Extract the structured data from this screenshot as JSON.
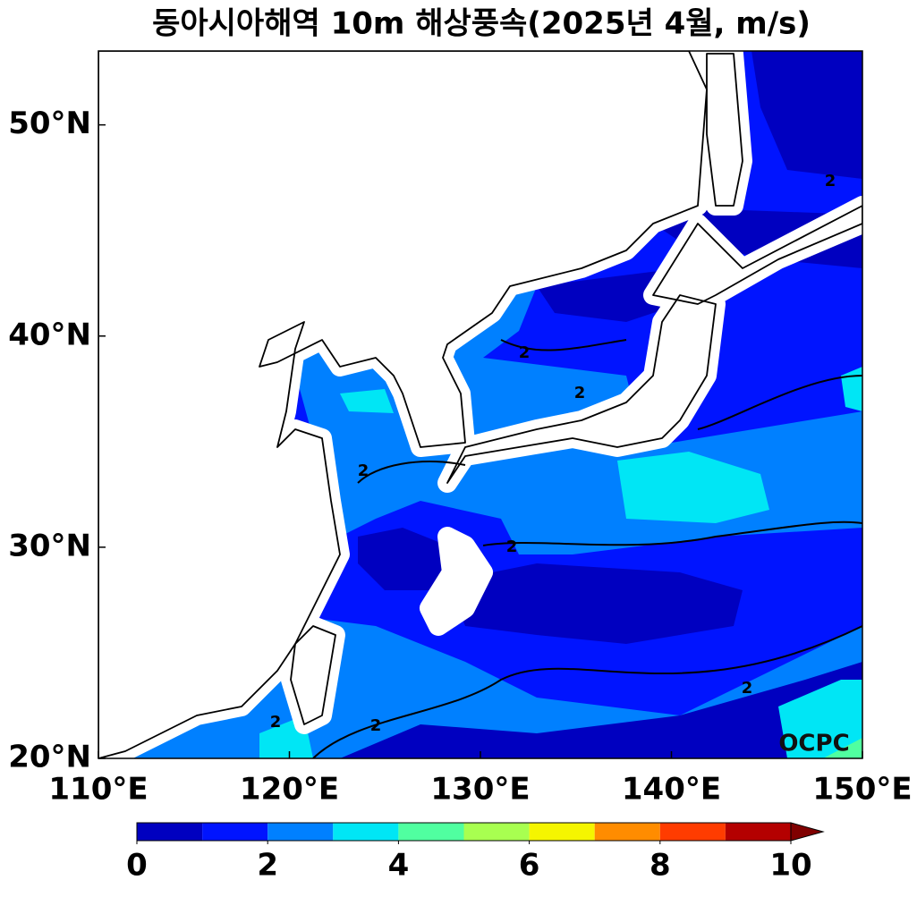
{
  "chart_data": {
    "type": "contour",
    "title": "동아시아해역 10m 해상풍속(2025년 4월, m/s)",
    "source": "OCPC",
    "xlim": [
      110,
      150
    ],
    "ylim": [
      20,
      53.5
    ],
    "xticks": [
      {
        "value": 110,
        "label": "110°E"
      },
      {
        "value": 120,
        "label": "120°E"
      },
      {
        "value": 130,
        "label": "130°E"
      },
      {
        "value": 140,
        "label": "140°E"
      },
      {
        "value": 150,
        "label": "150°E"
      }
    ],
    "yticks": [
      {
        "value": 20,
        "label": "20°N"
      },
      {
        "value": 30,
        "label": "30°N"
      },
      {
        "value": 40,
        "label": "40°N"
      },
      {
        "value": 50,
        "label": "50°N"
      }
    ],
    "levels": [
      0,
      1,
      2,
      3,
      4,
      5,
      6,
      7,
      8,
      9,
      10
    ],
    "colors": [
      "#0000c0",
      "#0014ff",
      "#0080ff",
      "#00e6f5",
      "#50ffa0",
      "#a8ff50",
      "#f5f500",
      "#ff8c00",
      "#ff3c00",
      "#b40000"
    ],
    "extend_color": "#800000",
    "colorbar_ticks": [
      0,
      2,
      4,
      6,
      8,
      10
    ],
    "contour_level": 2
  }
}
